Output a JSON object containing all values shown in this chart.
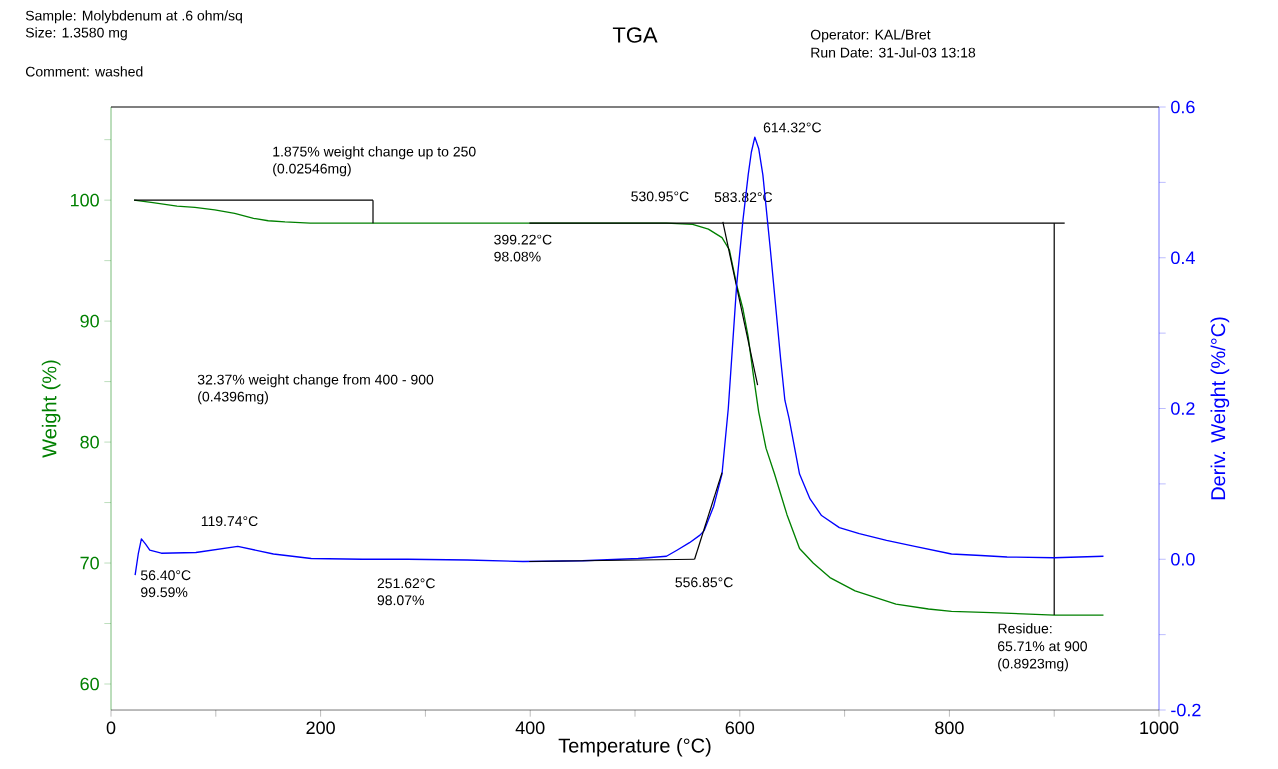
{
  "chart_data": {
    "type": "line",
    "title": "TGA",
    "xlabel": "Temperature (°C)",
    "ylabel": "Weight (%)",
    "y2label": "Deriv. Weight (%/°C)",
    "xlim": [
      0,
      1000
    ],
    "ylim": [
      57.85,
      107.7
    ],
    "y2lim": [
      -0.2,
      0.6
    ],
    "xticks": [
      0,
      {
        "value": 100,
        "label": null
      },
      200,
      {
        "value": 300,
        "label": null
      },
      400,
      {
        "value": 500,
        "label": null
      },
      600,
      {
        "value": 700,
        "label": null
      },
      800,
      {
        "value": 900,
        "label": null
      },
      1000
    ],
    "yticks": [
      60,
      {
        "value": 65,
        "label": null
      },
      70,
      {
        "value": 75,
        "label": null
      },
      80,
      {
        "value": 85,
        "label": null
      },
      90,
      {
        "value": 95,
        "label": null
      },
      100,
      {
        "value": 105,
        "label": null
      }
    ],
    "y2ticks": [
      {
        "value": -0.2,
        "label": "-0.2"
      },
      {
        "value": -0.1,
        "label": null
      },
      {
        "value": 0,
        "label": "0.0"
      },
      {
        "value": 0.1,
        "label": null
      },
      {
        "value": 0.2,
        "label": "0.2"
      },
      {
        "value": 0.3,
        "label": null
      },
      {
        "value": 0.4,
        "label": "0.4"
      },
      {
        "value": 0.5,
        "label": null
      },
      {
        "value": 0.6,
        "label": "0.6"
      }
    ],
    "series": [
      {
        "color": "#008000",
        "x": [
          22,
          40,
          63,
          80,
          99,
          118,
          136,
          150,
          166,
          190,
          220,
          260,
          300,
          350,
          400,
          450,
          500,
          530,
          555,
          570,
          583,
          590,
          597,
          603,
          608,
          613,
          618,
          625,
          633,
          645,
          657,
          670,
          686,
          710,
          749,
          780,
          802,
          840,
          870,
          900,
          947
        ],
        "values": [
          100,
          99.8,
          99.5,
          99.4,
          99.2,
          98.9,
          98.5,
          98.3,
          98.2,
          98.1,
          98.1,
          98.1,
          98.1,
          98.1,
          98.1,
          98.1,
          98.1,
          98.1,
          98.0,
          97.6,
          96.9,
          95.9,
          93.0,
          91.0,
          88.7,
          85.5,
          82.5,
          79.5,
          77.4,
          74.0,
          71.2,
          70.0,
          68.8,
          67.7,
          66.6,
          66.2,
          66.0,
          65.9,
          65.8,
          65.7,
          65.7
        ]
      },
      {
        "color": "#0000ff",
        "axis": "y2",
        "x": [
          23,
          26,
          29,
          33,
          37,
          48,
          81,
          121,
          155,
          191,
          240,
          283,
          340,
          393,
          450,
          503,
          530,
          540,
          552,
          562,
          566,
          575,
          583,
          589,
          597,
          603,
          608,
          611,
          614.32,
          618,
          622,
          629,
          639,
          643,
          647,
          657,
          667,
          678,
          695,
          714,
          740,
          767,
          802,
          830,
          855,
          900,
          947
        ],
        "values": [
          -0.021,
          0.007,
          0.027,
          0.02,
          0.012,
          0.008,
          0.009,
          0.017,
          0.007,
          0.001,
          0.0,
          0.0,
          -0.001,
          -0.003,
          -0.002,
          0.001,
          0.004,
          0.012,
          0.022,
          0.032,
          0.038,
          0.07,
          0.113,
          0.2,
          0.364,
          0.45,
          0.51,
          0.54,
          0.56,
          0.545,
          0.51,
          0.413,
          0.265,
          0.211,
          0.187,
          0.113,
          0.08,
          0.058,
          0.042,
          0.034,
          0.025,
          0.017,
          0.007,
          0.005,
          0.003,
          0.002,
          0.004
        ]
      },
      {
        "color": "#000000",
        "x": [
          22,
          250
        ],
        "values": [
          100,
          100
        ]
      },
      {
        "color": "#000000",
        "x": [
          250,
          250
        ],
        "values": [
          100,
          98.1
        ]
      },
      {
        "color": "#000000",
        "x": [
          399.22,
          910
        ],
        "values": [
          98.1,
          98.1
        ]
      },
      {
        "color": "#000000",
        "x": [
          583.82,
          617
        ],
        "values": [
          98.2,
          84.7
        ]
      },
      {
        "color": "#000000",
        "x": [
          900,
          900
        ],
        "values": [
          98.1,
          65.7
        ]
      },
      {
        "color": "#000000",
        "axis": "y2",
        "x": [
          399.22,
          556.85
        ],
        "values": [
          -0.003,
          0.0
        ]
      },
      {
        "color": "#000000",
        "axis": "y2",
        "x": [
          556.85,
          583
        ],
        "values": [
          0.0,
          0.115
        ]
      }
    ],
    "annotations": [
      "Sample: Molybdenum at .6 ohm/sq",
      "Size:   1.3580 mg",
      "Comment: washed",
      "Operator: KAL/Bret",
      "Run Date: 31-Jul-03 13:18",
      "1.875% weight change up to 250",
      "(0.02546mg)",
      "32.37% weight change from 400 - 900",
      "(0.4396mg)",
      {
        "text": "56.40°C",
        "x": 56.4,
        "y": 70.83
      },
      {
        "text": "99.59%",
        "x": 56.4,
        "y": 70.83
      },
      {
        "text": "119.74°C",
        "x": 119.74,
        "y": 71.5
      },
      {
        "text": "251.62°C",
        "x": 251.62,
        "y": 70.33
      },
      {
        "text": "98.07%",
        "x": 251.62,
        "y": 70.33
      },
      {
        "text": "399.22°C",
        "x": 399.22,
        "y": 98.08
      },
      {
        "text": "98.08%",
        "x": 399.22,
        "y": 98.08
      },
      {
        "text": "530.95°C",
        "x": 530.95,
        "y": 98.1
      },
      {
        "text": "583.82°C",
        "x": 583.82,
        "y": 98.2
      },
      {
        "text": "614.32°C",
        "x": 614.32,
        "y": 105.2
      },
      {
        "text": "556.85°C",
        "x": 556.85,
        "y": 70.33
      },
      {
        "text": "Residue:",
        "x": 900,
        "y": 65.71
      },
      "65.71% at 900",
      "(0.8923mg)"
    ]
  }
}
